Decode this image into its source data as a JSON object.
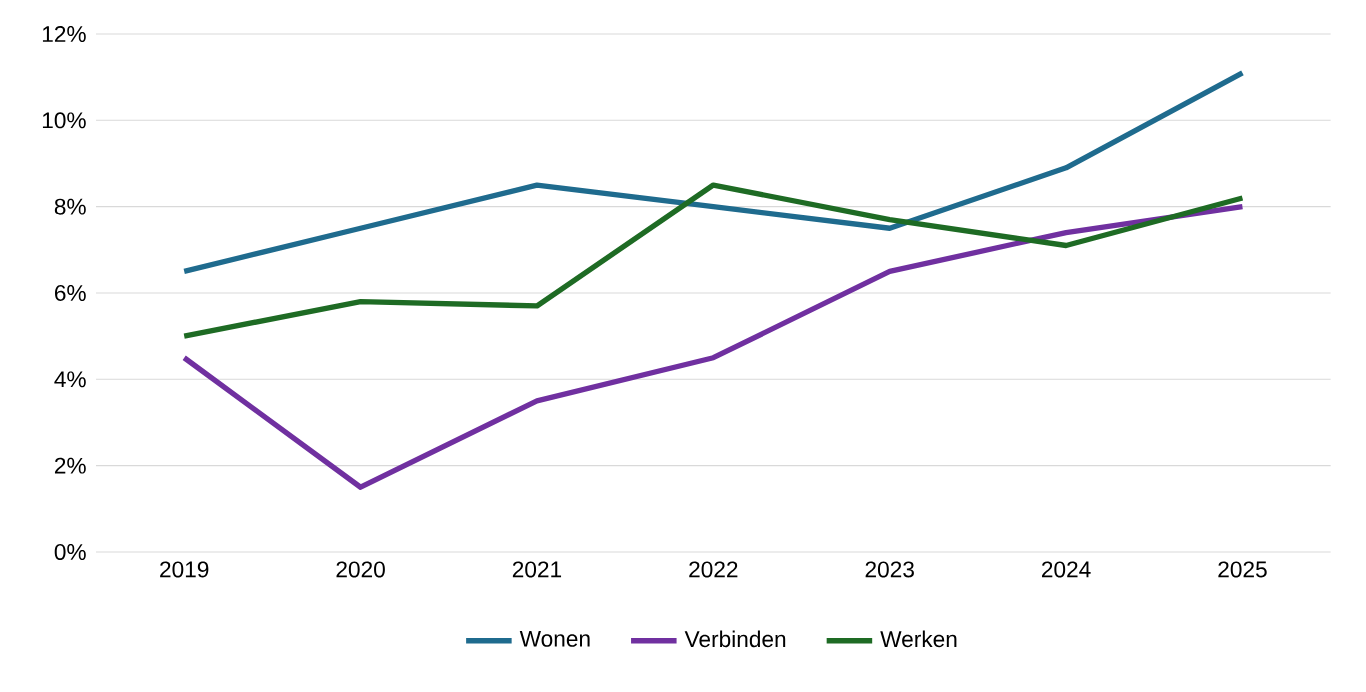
{
  "chart_data": {
    "type": "line",
    "categories": [
      "2019",
      "2020",
      "2021",
      "2022",
      "2023",
      "2024",
      "2025"
    ],
    "series": [
      {
        "name": "Wonen",
        "color": "#1f6b8e",
        "values": [
          6.5,
          7.5,
          8.5,
          8.0,
          7.5,
          8.9,
          11.1
        ]
      },
      {
        "name": "Verbinden",
        "color": "#7030a0",
        "values": [
          4.5,
          1.5,
          3.5,
          4.5,
          6.5,
          7.4,
          8.0
        ]
      },
      {
        "name": "Werken",
        "color": "#1e6b24",
        "values": [
          5.0,
          5.8,
          5.7,
          8.5,
          7.7,
          7.1,
          8.2
        ]
      }
    ],
    "ylim": [
      0,
      12
    ],
    "yticks": [
      {
        "value": 0,
        "label": "0%"
      },
      {
        "value": 2,
        "label": "2%"
      },
      {
        "value": 4,
        "label": "4%"
      },
      {
        "value": 6,
        "label": "6%"
      },
      {
        "value": 8,
        "label": "8%"
      },
      {
        "value": 10,
        "label": "10%"
      },
      {
        "value": 12,
        "label": "12%"
      }
    ],
    "grid": "y",
    "legend": "bottom",
    "marker": "none",
    "line_style": "solid"
  }
}
